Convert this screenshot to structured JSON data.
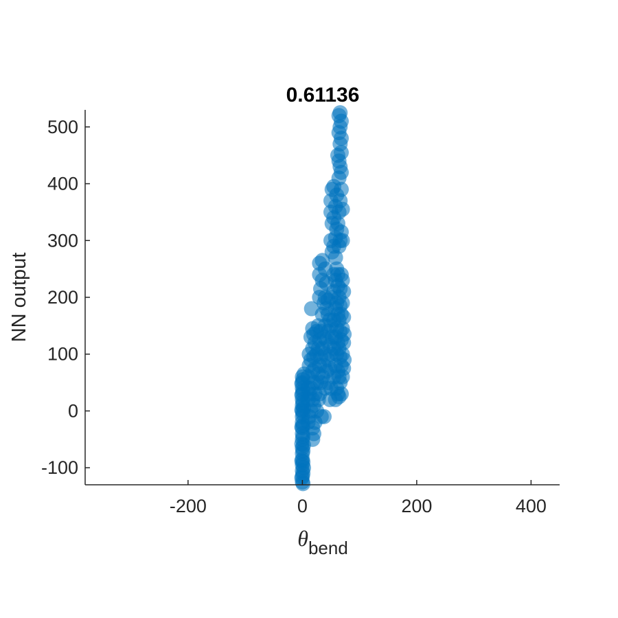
{
  "chart_data": {
    "type": "scatter",
    "title": "0.61136",
    "xlabel": {
      "symbol": "θ",
      "subscript": "bend"
    },
    "ylabel": "NN output",
    "xlim": [
      -380,
      450
    ],
    "ylim": [
      -130,
      530
    ],
    "xticks": [
      -200,
      0,
      200,
      400
    ],
    "yticks": [
      -100,
      0,
      100,
      200,
      300,
      400,
      500
    ],
    "xtick_labels": [
      "-200",
      "0",
      "200",
      "400"
    ],
    "ytick_labels": [
      "-100",
      "0",
      "100",
      "200",
      "300",
      "400",
      "500"
    ],
    "grid": false,
    "marker_color": "#0072BD",
    "marker_alpha": 0.55,
    "series": [
      {
        "points": [
          [
            0,
            -125
          ],
          [
            0,
            -115
          ],
          [
            0,
            -105
          ],
          [
            0,
            -95
          ],
          [
            0,
            -85
          ],
          [
            0,
            -75
          ],
          [
            0,
            -65
          ],
          [
            0,
            -50
          ],
          [
            0,
            -40
          ],
          [
            0,
            -30
          ],
          [
            0,
            -20
          ],
          [
            0,
            -10
          ],
          [
            0,
            0
          ],
          [
            0,
            10
          ],
          [
            0,
            20
          ],
          [
            0,
            30
          ],
          [
            0,
            40
          ],
          [
            0,
            50
          ],
          [
            0,
            60
          ],
          [
            1,
            -128
          ],
          [
            1,
            -110
          ],
          [
            1,
            -90
          ],
          [
            1,
            -70
          ],
          [
            1,
            -45
          ],
          [
            1,
            -25
          ],
          [
            1,
            -5
          ],
          [
            1,
            15
          ],
          [
            1,
            35
          ],
          [
            1,
            55
          ],
          [
            -1,
            -118
          ],
          [
            -1,
            -88
          ],
          [
            -1,
            -58
          ],
          [
            -1,
            -28
          ],
          [
            -1,
            2
          ],
          [
            -1,
            28
          ],
          [
            -1,
            48
          ],
          [
            3,
            65
          ],
          [
            2,
            -100
          ],
          [
            2,
            -60
          ],
          [
            2,
            5
          ],
          [
            10,
            20
          ],
          [
            10,
            40
          ],
          [
            10,
            60
          ],
          [
            10,
            -20
          ],
          [
            12,
            80
          ],
          [
            12,
            100
          ],
          [
            12,
            30
          ],
          [
            12,
            -10
          ],
          [
            15,
            0
          ],
          [
            15,
            40
          ],
          [
            15,
            90
          ],
          [
            15,
            130
          ],
          [
            16,
            180
          ],
          [
            18,
            -30
          ],
          [
            18,
            -50
          ],
          [
            18,
            20
          ],
          [
            18,
            70
          ],
          [
            18,
            110
          ],
          [
            18,
            145
          ],
          [
            20,
            -40
          ],
          [
            20,
            10
          ],
          [
            20,
            50
          ],
          [
            20,
            95
          ],
          [
            20,
            135
          ],
          [
            22,
            -20
          ],
          [
            22,
            30
          ],
          [
            22,
            75
          ],
          [
            22,
            120
          ],
          [
            25,
            0
          ],
          [
            25,
            50
          ],
          [
            25,
            100
          ],
          [
            25,
            140
          ],
          [
            28,
            20
          ],
          [
            28,
            65
          ],
          [
            28,
            110
          ],
          [
            28,
            150
          ],
          [
            30,
            30
          ],
          [
            30,
            80
          ],
          [
            30,
            125
          ],
          [
            30,
            200
          ],
          [
            30,
            240
          ],
          [
            30,
            260
          ],
          [
            32,
            50
          ],
          [
            32,
            95
          ],
          [
            32,
            140
          ],
          [
            32,
            215
          ],
          [
            33,
            -10
          ],
          [
            35,
            60
          ],
          [
            35,
            110
          ],
          [
            35,
            170
          ],
          [
            35,
            230
          ],
          [
            35,
            265
          ],
          [
            38,
            80
          ],
          [
            38,
            130
          ],
          [
            38,
            190
          ],
          [
            38,
            -10
          ],
          [
            40,
            40
          ],
          [
            40,
            100
          ],
          [
            40,
            150
          ],
          [
            40,
            200
          ],
          [
            40,
            250
          ],
          [
            42,
            70
          ],
          [
            42,
            125
          ],
          [
            42,
            180
          ],
          [
            42,
            225
          ],
          [
            45,
            50
          ],
          [
            45,
            90
          ],
          [
            45,
            140
          ],
          [
            45,
            170
          ],
          [
            45,
            195
          ],
          [
            48,
            20
          ],
          [
            48,
            75
          ],
          [
            48,
            115
          ],
          [
            48,
            160
          ],
          [
            50,
            40
          ],
          [
            50,
            100
          ],
          [
            50,
            150
          ],
          [
            50,
            200
          ],
          [
            50,
            300
          ],
          [
            50,
            350
          ],
          [
            50,
            370
          ],
          [
            52,
            130
          ],
          [
            52,
            280
          ],
          [
            52,
            330
          ],
          [
            52,
            390
          ],
          [
            55,
            60
          ],
          [
            55,
            110
          ],
          [
            55,
            160
          ],
          [
            55,
            210
          ],
          [
            55,
            240
          ],
          [
            55,
            290
          ],
          [
            55,
            340
          ],
          [
            55,
            395
          ],
          [
            58,
            20
          ],
          [
            58,
            80
          ],
          [
            58,
            130
          ],
          [
            58,
            180
          ],
          [
            58,
            230
          ],
          [
            58,
            270
          ],
          [
            58,
            305
          ],
          [
            58,
            360
          ],
          [
            60,
            40
          ],
          [
            60,
            100
          ],
          [
            60,
            145
          ],
          [
            60,
            190
          ],
          [
            60,
            250
          ],
          [
            60,
            320
          ],
          [
            60,
            380
          ],
          [
            62,
            30
          ],
          [
            62,
            70
          ],
          [
            62,
            120
          ],
          [
            62,
            170
          ],
          [
            62,
            220
          ],
          [
            62,
            240
          ],
          [
            62,
            330
          ],
          [
            62,
            450
          ],
          [
            64,
            25
          ],
          [
            64,
            60
          ],
          [
            64,
            110
          ],
          [
            64,
            160
          ],
          [
            64,
            200
          ],
          [
            64,
            290
          ],
          [
            64,
            350
          ],
          [
            64,
            410
          ],
          [
            64,
            440
          ],
          [
            64,
            490
          ],
          [
            64,
            520
          ],
          [
            66,
            50
          ],
          [
            66,
            95
          ],
          [
            66,
            140
          ],
          [
            66,
            185
          ],
          [
            66,
            215
          ],
          [
            66,
            300
          ],
          [
            66,
            370
          ],
          [
            66,
            430
          ],
          [
            66,
            470
          ],
          [
            66,
            500
          ],
          [
            66,
            525
          ],
          [
            68,
            30
          ],
          [
            68,
            80
          ],
          [
            68,
            125
          ],
          [
            68,
            170
          ],
          [
            68,
            240
          ],
          [
            68,
            315
          ],
          [
            68,
            390
          ],
          [
            68,
            420
          ],
          [
            68,
            455
          ],
          [
            68,
            480
          ],
          [
            68,
            510
          ],
          [
            70,
            60
          ],
          [
            70,
            100
          ],
          [
            70,
            145
          ],
          [
            70,
            190
          ],
          [
            70,
            230
          ],
          [
            70,
            300
          ],
          [
            70,
            355
          ],
          [
            72,
            75
          ],
          [
            72,
            120
          ],
          [
            72,
            165
          ],
          [
            72,
            210
          ],
          [
            73,
            90
          ],
          [
            73,
            135
          ]
        ]
      }
    ]
  }
}
